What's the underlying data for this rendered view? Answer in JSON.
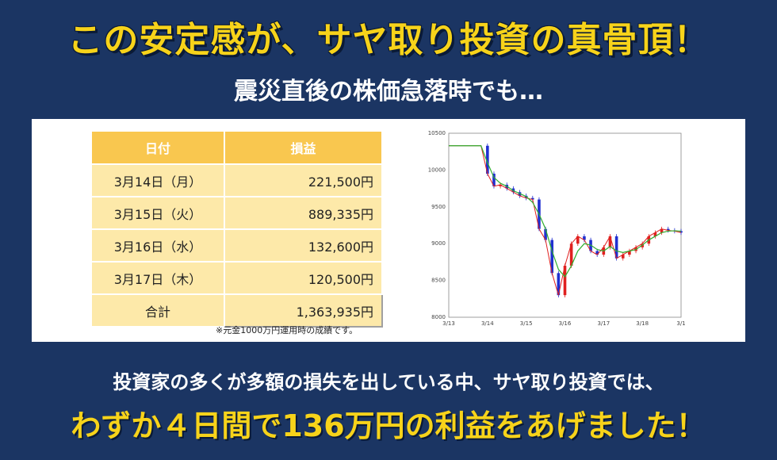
{
  "headline": "この安定感が、サヤ取り投資の真骨頂！",
  "subheadline": "震災直後の株価急落時でも…",
  "table": {
    "header_date": "日付",
    "header_value": "損益",
    "rows": [
      {
        "date": "3月14日（月）",
        "value": "221,500円"
      },
      {
        "date": "3月15日（火）",
        "value": "889,335円"
      },
      {
        "date": "3月16日（水）",
        "value": "132,600円"
      },
      {
        "date": "3月17日（木）",
        "value": "120,500円"
      }
    ],
    "total_label": "合計",
    "total_value": "1,363,935円"
  },
  "note": "※元金1000万円運用時の成績です。",
  "bottom_line1": "投資家の多くが多額の損失を出している中、サヤ取り投資では、",
  "bottom_line2": "わずか４日間で136万円の利益をあげました！",
  "chart_data": {
    "type": "line",
    "x_ticks": [
      "3/13",
      "3/14",
      "3/15",
      "3/16",
      "3/17",
      "3/18",
      "3/1"
    ],
    "y_ticks": [
      "10500",
      "10000",
      "9500",
      "9000",
      "8500",
      "8000"
    ],
    "ylim": [
      8000,
      10500
    ],
    "series": [
      {
        "values": [
          10330,
          10330,
          10330,
          10330,
          10330,
          10330,
          9950,
          9780,
          9800,
          9750,
          9700,
          9650,
          9620,
          9600,
          9200,
          9050,
          8600,
          8300,
          8700,
          9000,
          9100,
          9050,
          8900,
          8850,
          8950,
          9100,
          8800,
          8850,
          8900,
          8950,
          9000,
          9100,
          9150,
          9200,
          9180,
          9170,
          9150
        ]
      },
      {
        "values": [
          10330,
          10330,
          10330,
          10330,
          10330,
          10330,
          10100,
          9900,
          9820,
          9780,
          9720,
          9680,
          9640,
          9560,
          9400,
          9200,
          8900,
          8650,
          8550,
          8700,
          8900,
          9000,
          8980,
          8920,
          8900,
          8960,
          8900,
          8880,
          8900,
          8920,
          8980,
          9050,
          9100,
          9150,
          9170,
          9175,
          9170
        ]
      }
    ],
    "colors": [
      "#e0201f",
      "#2fae2f"
    ],
    "candle_colors": [
      "#2030d0",
      "#e0201f"
    ]
  }
}
